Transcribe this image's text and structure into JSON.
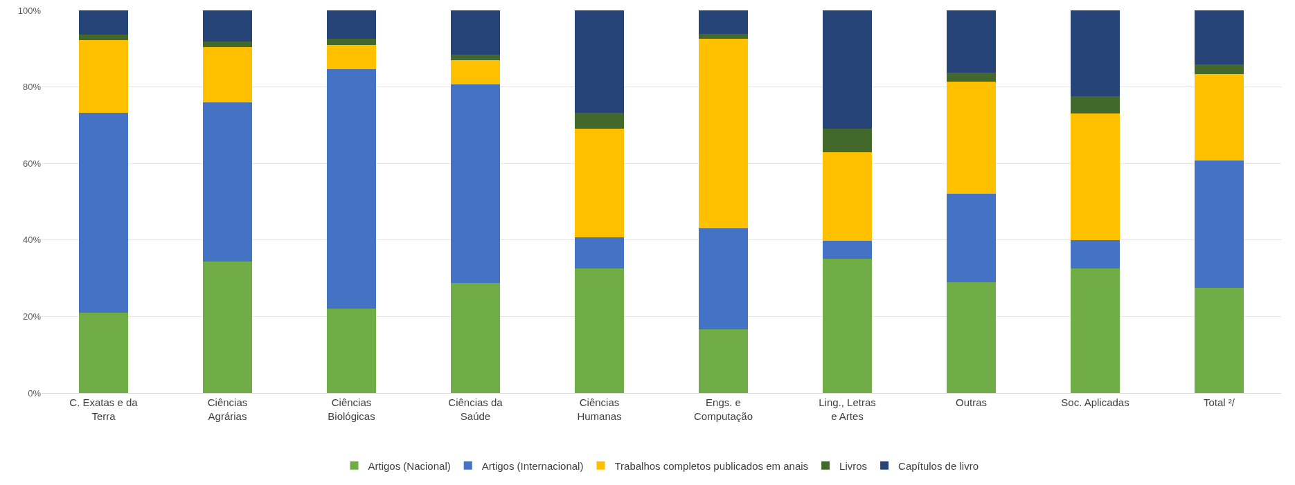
{
  "chart_data": {
    "type": "bar",
    "stacked": true,
    "categories": [
      "C. Exatas e da Terra",
      "Ciências Agrárias",
      "Ciências Biológicas",
      "Ciências da Saúde",
      "Ciências Humanas",
      "Engs. e Computação",
      "Ling., Letras e Artes",
      "Outras",
      "Soc. Aplicadas",
      "Total ²/"
    ],
    "series": [
      {
        "name": "Artigos (Nacional)",
        "color": "#70ad47",
        "values": [
          21,
          34.3,
          22,
          28.8,
          32.6,
          16.6,
          35,
          29,
          32.6,
          27.4
        ]
      },
      {
        "name": "Artigos (Internacional)",
        "color": "#4472c4",
        "values": [
          52.3,
          41.7,
          62.6,
          51.8,
          8,
          26.4,
          4.8,
          23,
          7.4,
          33.4
        ]
      },
      {
        "name": "Trabalhos completos publicados em anais",
        "color": "#ffc000",
        "values": [
          19,
          14.5,
          6.4,
          6.3,
          28.4,
          49.6,
          23.2,
          29.3,
          33,
          22.6
        ]
      },
      {
        "name": "Livros",
        "color": "#43682b",
        "values": [
          1.3,
          1.3,
          1.5,
          1.5,
          4.3,
          1.3,
          6,
          2.5,
          4.5,
          2.5
        ]
      },
      {
        "name": "Capítulos de livro",
        "color": "#264478",
        "values": [
          6.4,
          8.2,
          7.5,
          11.6,
          26.7,
          6.1,
          31,
          16.2,
          22.5,
          14.1
        ]
      }
    ],
    "ylim": [
      0,
      100
    ],
    "yticks": [
      {
        "value": 0,
        "label": "0%"
      },
      {
        "value": 20,
        "label": "20%"
      },
      {
        "value": 40,
        "label": "40%"
      },
      {
        "value": 60,
        "label": "60%"
      },
      {
        "value": 80,
        "label": "80%"
      },
      {
        "value": 100,
        "label": "100%"
      }
    ],
    "grid": "y",
    "legend": "bottom"
  }
}
